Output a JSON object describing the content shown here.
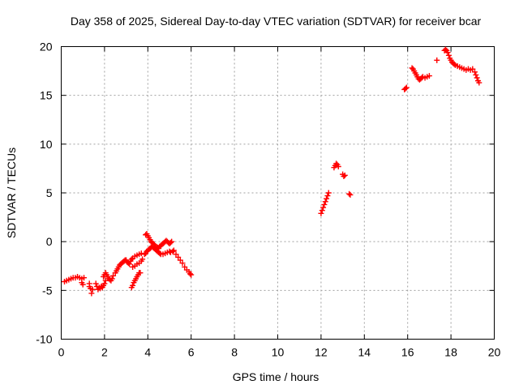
{
  "chart_data": {
    "type": "scatter",
    "title": "Day 358 of 2025, Sidereal Day-to-day VTEC variation (SDTVAR) for receiver bcar",
    "xlabel": "GPS time / hours",
    "ylabel": "SDTVAR / TECUs",
    "xlim": [
      0,
      20
    ],
    "ylim": [
      -10,
      20
    ],
    "xticks": [
      0,
      2,
      4,
      6,
      8,
      10,
      12,
      14,
      16,
      18,
      20
    ],
    "yticks": [
      -10,
      -5,
      0,
      5,
      10,
      15,
      20
    ],
    "xtick_labels": [
      "0",
      "2",
      "4",
      "6",
      "8",
      "10",
      "12",
      "14",
      "16",
      "18",
      "20"
    ],
    "ytick_labels": [
      "-10",
      "-5",
      "0",
      "5",
      "10",
      "15",
      "20"
    ],
    "grid": true,
    "marker": "+",
    "series": [
      {
        "name": "SDTVAR",
        "color": "#ff0000",
        "x": [
          0.15,
          0.25,
          0.35,
          0.45,
          0.55,
          0.65,
          0.75,
          0.85,
          0.95,
          1.05,
          0.95,
          1.0,
          1.3,
          1.35,
          1.4,
          1.45,
          1.3,
          1.6,
          1.65,
          1.7,
          1.75,
          1.8,
          1.85,
          1.9,
          1.95,
          2.0,
          2.05,
          1.95,
          2.0,
          2.05,
          2.1,
          2.15,
          2.2,
          2.25,
          2.3,
          2.35,
          2.4,
          2.5,
          2.55,
          2.6,
          2.65,
          2.7,
          2.75,
          2.8,
          2.85,
          2.9,
          2.95,
          3.0,
          3.05,
          3.1,
          3.15,
          3.2,
          3.25,
          3.3,
          3.4,
          3.5,
          3.6,
          3.7,
          3.25,
          3.3,
          3.35,
          3.4,
          3.45,
          3.5,
          3.55,
          3.6,
          3.3,
          3.4,
          3.5,
          3.6,
          3.7,
          3.75,
          3.65,
          3.9,
          3.95,
          4.0,
          4.05,
          4.1,
          4.15,
          4.2,
          4.25,
          4.3,
          4.35,
          4.4,
          4.45,
          4.5,
          4.55,
          4.6,
          4.65,
          4.7,
          4.75,
          4.8,
          4.85,
          4.9,
          4.95,
          5.0,
          5.05,
          5.1,
          3.85,
          3.9,
          3.95,
          4.0,
          4.05,
          4.1,
          4.15,
          4.2,
          4.25,
          4.3,
          4.35,
          4.4,
          4.45,
          4.5,
          4.55,
          4.6,
          4.7,
          4.8,
          4.9,
          5.0,
          5.05,
          5.15,
          5.2,
          5.3,
          5.4,
          5.5,
          5.6,
          5.7,
          5.8,
          5.9,
          5.95,
          6.0,
          12.0,
          12.05,
          12.1,
          12.15,
          12.2,
          12.25,
          12.3,
          12.35,
          12.6,
          12.65,
          12.7,
          12.75,
          12.8,
          13.0,
          13.05,
          13.1,
          13.3,
          13.35,
          15.85,
          15.9,
          15.95,
          16.2,
          16.25,
          16.3,
          16.35,
          16.4,
          16.45,
          16.5,
          16.55,
          16.6,
          16.65,
          16.7,
          16.8,
          16.9,
          17.0,
          17.35,
          17.7,
          17.75,
          17.8,
          17.85,
          17.9,
          17.95,
          18.0,
          18.05,
          18.1,
          18.15,
          18.2,
          18.3,
          18.4,
          18.5,
          18.6,
          18.7,
          18.8,
          18.9,
          19.0,
          19.1,
          19.15,
          19.2,
          19.25,
          19.3
        ],
        "y": [
          -4.1,
          -4.0,
          -3.9,
          -3.8,
          -3.7,
          -3.7,
          -3.6,
          -3.7,
          -3.8,
          -3.7,
          -4.2,
          -4.4,
          -4.3,
          -4.8,
          -5.3,
          -4.9,
          -4.6,
          -4.3,
          -4.6,
          -4.9,
          -4.7,
          -4.8,
          -4.6,
          -4.7,
          -4.5,
          -4.3,
          -4.0,
          -3.6,
          -3.4,
          -3.2,
          -3.4,
          -3.6,
          -3.8,
          -3.9,
          -4.0,
          -3.8,
          -3.5,
          -3.2,
          -3.0,
          -2.8,
          -2.6,
          -2.4,
          -2.3,
          -2.2,
          -2.1,
          -2.0,
          -1.9,
          -1.9,
          -2.1,
          -2.2,
          -2.3,
          -2.0,
          -1.8,
          -1.7,
          -1.5,
          -1.4,
          -1.3,
          -1.2,
          -4.7,
          -4.5,
          -4.2,
          -4.0,
          -3.8,
          -3.6,
          -3.4,
          -3.2,
          -2.6,
          -2.5,
          -2.3,
          -2.2,
          -2.0,
          -1.8,
          -3.2,
          0.7,
          0.8,
          0.6,
          0.4,
          0.2,
          0.0,
          -0.1,
          -0.2,
          -0.3,
          -0.5,
          -0.6,
          -0.6,
          -0.7,
          -0.5,
          -0.4,
          -0.3,
          -0.2,
          -0.1,
          0.0,
          0.1,
          0.0,
          -0.1,
          -0.2,
          -0.1,
          0.0,
          -1.3,
          -1.2,
          -1.0,
          -0.9,
          -0.8,
          -0.7,
          -0.6,
          -0.5,
          -0.6,
          -0.7,
          -0.8,
          -0.9,
          -1.0,
          -1.1,
          -1.2,
          -1.3,
          -1.3,
          -1.2,
          -1.1,
          -1.0,
          -1.1,
          -1.0,
          -0.9,
          -1.3,
          -1.6,
          -1.9,
          -2.2,
          -2.6,
          -2.9,
          -3.1,
          -3.3,
          -3.4,
          2.9,
          3.2,
          3.5,
          3.8,
          4.1,
          4.4,
          4.7,
          5.0,
          7.6,
          7.8,
          8.0,
          7.9,
          7.7,
          6.9,
          6.7,
          6.8,
          4.9,
          4.8,
          15.6,
          15.7,
          15.8,
          17.8,
          17.7,
          17.5,
          17.3,
          17.1,
          16.9,
          16.7,
          16.6,
          16.7,
          16.8,
          16.9,
          16.8,
          16.9,
          17.0,
          18.6,
          19.6,
          19.7,
          19.6,
          19.4,
          19.1,
          18.8,
          18.6,
          18.4,
          18.3,
          18.2,
          18.1,
          18.0,
          17.9,
          17.8,
          17.7,
          17.6,
          17.7,
          17.6,
          17.7,
          17.4,
          17.1,
          16.8,
          16.5,
          16.3
        ]
      }
    ]
  }
}
